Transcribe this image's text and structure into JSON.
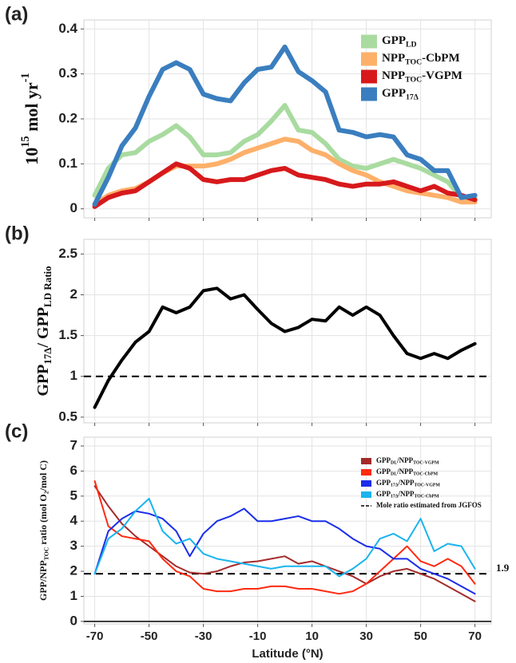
{
  "chart_data": [
    {
      "type": "line",
      "panel_label": "(a)",
      "ylabel": [
        {
          "t": "10"
        },
        {
          "sup": "15"
        },
        {
          "t": " mol yr"
        },
        {
          "sup": "-1"
        }
      ],
      "x": [
        -70,
        -65,
        -60,
        -55,
        -50,
        -45,
        -40,
        -35,
        -30,
        -25,
        -20,
        -15,
        -10,
        -5,
        0,
        5,
        10,
        15,
        20,
        25,
        30,
        35,
        40,
        45,
        50,
        55,
        60,
        65,
        70
      ],
      "xlim": [
        -74,
        76
      ],
      "xticks": [
        -70,
        -50,
        -30,
        -10,
        10,
        30,
        50,
        70
      ],
      "ylim": [
        -0.02,
        0.42
      ],
      "yticks": [
        0,
        0.1,
        0.2,
        0.3,
        0.4
      ],
      "grid": true,
      "legend": "top-right",
      "series": [
        {
          "name": [
            {
              "t": "GPP"
            },
            {
              "sub": "LD"
            }
          ],
          "color": "#a9dba0",
          "values": [
            0.03,
            0.09,
            0.12,
            0.125,
            0.15,
            0.165,
            0.185,
            0.16,
            0.12,
            0.12,
            0.125,
            0.15,
            0.165,
            0.195,
            0.23,
            0.175,
            0.17,
            0.145,
            0.11,
            0.095,
            0.09,
            0.1,
            0.11,
            0.1,
            0.09,
            0.075,
            0.06,
            0.025,
            0.025
          ]
        },
        {
          "name": [
            {
              "t": "NPP"
            },
            {
              "sub": "TOC"
            },
            {
              "t": "-CbPM"
            }
          ],
          "color": "#fdb06a",
          "values": [
            0.01,
            0.03,
            0.04,
            0.045,
            0.06,
            0.08,
            0.095,
            0.095,
            0.095,
            0.1,
            0.11,
            0.125,
            0.135,
            0.145,
            0.155,
            0.15,
            0.13,
            0.12,
            0.1,
            0.085,
            0.075,
            0.06,
            0.05,
            0.04,
            0.035,
            0.03,
            0.025,
            0.015,
            0.015
          ]
        },
        {
          "name": [
            {
              "t": "NPP"
            },
            {
              "sub": "TOC"
            },
            {
              "t": "-VGPM"
            }
          ],
          "color": "#d7191c",
          "values": [
            0.005,
            0.025,
            0.035,
            0.04,
            0.06,
            0.08,
            0.1,
            0.09,
            0.065,
            0.06,
            0.065,
            0.065,
            0.075,
            0.085,
            0.09,
            0.075,
            0.07,
            0.065,
            0.055,
            0.05,
            0.055,
            0.055,
            0.06,
            0.05,
            0.04,
            0.05,
            0.035,
            0.03,
            0.02
          ]
        },
        {
          "name": [
            {
              "t": "GPP"
            },
            {
              "sub": "17Δ"
            }
          ],
          "color": "#3a7ebf",
          "values": [
            0.01,
            0.07,
            0.14,
            0.18,
            0.25,
            0.31,
            0.325,
            0.31,
            0.255,
            0.245,
            0.24,
            0.28,
            0.31,
            0.315,
            0.36,
            0.305,
            0.285,
            0.26,
            0.175,
            0.17,
            0.16,
            0.165,
            0.16,
            0.12,
            0.11,
            0.085,
            0.085,
            0.025,
            0.03
          ]
        }
      ]
    },
    {
      "type": "line",
      "panel_label": "(b)",
      "ylabel": [
        {
          "t": "GPP"
        },
        {
          "sub": "17Δ"
        },
        {
          "t": "/ GPP"
        },
        {
          "sub": "LD Ratio"
        }
      ],
      "x": [
        -70,
        -65,
        -60,
        -55,
        -50,
        -45,
        -40,
        -35,
        -30,
        -25,
        -20,
        -15,
        -10,
        -5,
        0,
        5,
        10,
        15,
        20,
        25,
        30,
        35,
        40,
        45,
        50,
        55,
        60,
        65,
        70
      ],
      "xlim": [
        -74,
        76
      ],
      "xticks": [
        -70,
        -50,
        -30,
        -10,
        10,
        30,
        50,
        70
      ],
      "ylim": [
        0.43,
        2.68
      ],
      "yticks": [
        0.5,
        1,
        1.5,
        2,
        2.5
      ],
      "grid": true,
      "ref_line": 1,
      "series": [
        {
          "color": "#000000",
          "values": [
            0.62,
            0.95,
            1.2,
            1.42,
            1.55,
            1.85,
            1.78,
            1.85,
            2.05,
            2.08,
            1.95,
            2.0,
            1.82,
            1.65,
            1.55,
            1.6,
            1.7,
            1.68,
            1.85,
            1.75,
            1.85,
            1.75,
            1.5,
            1.28,
            1.22,
            1.28,
            1.22,
            1.32,
            1.4
          ]
        }
      ]
    },
    {
      "type": "line",
      "panel_label": "(c)",
      "ylabel": [
        {
          "t": "GPP/NPP"
        },
        {
          "sub": "TOC"
        },
        {
          "t": " ratio (mol O"
        },
        {
          "sub": "2"
        },
        {
          "t": "/mol C)"
        }
      ],
      "xlabel": "Latitude (°N)",
      "x": [
        -70,
        -65,
        -60,
        -55,
        -50,
        -45,
        -40,
        -35,
        -30,
        -25,
        -20,
        -15,
        -10,
        -5,
        0,
        5,
        10,
        15,
        20,
        25,
        30,
        35,
        40,
        45,
        50,
        55,
        60,
        65,
        70
      ],
      "xlim": [
        -74,
        76
      ],
      "xticks": [
        -70,
        -50,
        -30,
        -10,
        10,
        30,
        50,
        70
      ],
      "ylim": [
        -0.1,
        7.35
      ],
      "yticks": [
        0,
        1,
        2,
        3,
        4,
        5,
        6,
        7
      ],
      "grid": true,
      "zero_line": true,
      "legend": "top-right",
      "ref_line": 1.9,
      "ref_label": "Mole ratio estimated from JGFOS",
      "series": [
        {
          "name": [
            {
              "t": "GPP"
            },
            {
              "sub": "DL"
            },
            {
              "t": "/NPP"
            },
            {
              "sub": "TOC-VGPM"
            }
          ],
          "color": "#a52a2a",
          "values": [
            5.4,
            4.6,
            3.9,
            3.4,
            3.0,
            2.6,
            2.2,
            1.95,
            1.9,
            2.0,
            2.2,
            2.35,
            2.4,
            2.5,
            2.6,
            2.3,
            2.4,
            2.2,
            2.0,
            1.8,
            1.5,
            1.8,
            2.0,
            2.1,
            1.9,
            1.7,
            1.4,
            1.1,
            0.8
          ]
        },
        {
          "name": [
            {
              "t": "GPP"
            },
            {
              "sub": "DL"
            },
            {
              "t": "/NPP"
            },
            {
              "sub": "TOC-CbPM"
            }
          ],
          "color": "#ff2a10",
          "values": [
            5.6,
            3.8,
            3.4,
            3.3,
            3.2,
            2.5,
            2.0,
            1.8,
            1.3,
            1.2,
            1.2,
            1.3,
            1.3,
            1.4,
            1.4,
            1.3,
            1.3,
            1.2,
            1.1,
            1.2,
            1.5,
            2.0,
            2.5,
            3.0,
            2.4,
            2.2,
            2.5,
            2.2,
            1.5
          ]
        },
        {
          "name": [
            {
              "t": "GPP"
            },
            {
              "sub": "17Δ"
            },
            {
              "t": "/NPP"
            },
            {
              "sub": "TOC-VGPM"
            }
          ],
          "color": "#1a2eea",
          "values": [
            1.9,
            3.6,
            4.1,
            4.4,
            4.3,
            4.1,
            3.6,
            2.6,
            3.5,
            4.0,
            4.2,
            4.5,
            4.0,
            4.0,
            4.1,
            4.2,
            4.0,
            4.0,
            3.7,
            3.3,
            3.0,
            2.9,
            2.5,
            2.5,
            2.1,
            1.9,
            1.7,
            1.4,
            1.1
          ]
        },
        {
          "name": [
            {
              "t": "GPP"
            },
            {
              "sub": "17Δ"
            },
            {
              "t": "/NPP"
            },
            {
              "sub": "TOC-CbPM"
            }
          ],
          "color": "#1ab4ee",
          "values": [
            1.9,
            3.3,
            3.7,
            4.4,
            4.9,
            3.6,
            3.1,
            3.3,
            2.7,
            2.5,
            2.4,
            2.3,
            2.2,
            2.1,
            2.2,
            2.2,
            2.2,
            2.2,
            1.8,
            2.1,
            2.5,
            3.3,
            3.5,
            3.2,
            4.1,
            2.8,
            3.1,
            3.0,
            2.1
          ]
        }
      ]
    }
  ]
}
